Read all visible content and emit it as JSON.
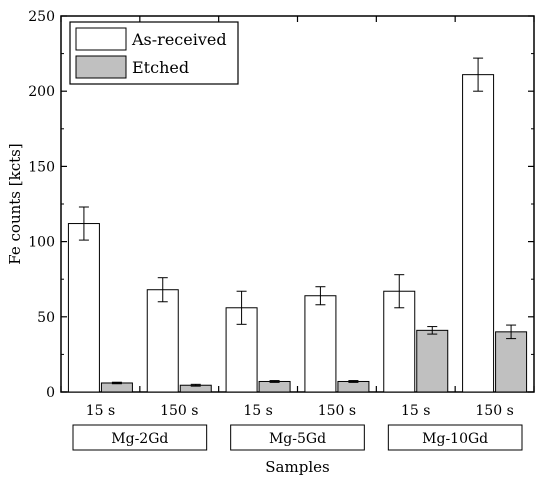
{
  "chart_data": {
    "type": "bar",
    "xlabel": "Samples",
    "ylabel": "Fe counts [kcts]",
    "ylim": [
      0,
      250
    ],
    "yticks": [
      0,
      50,
      100,
      150,
      200,
      250
    ],
    "categories": [
      "15 s",
      "150 s",
      "15 s",
      "150 s",
      "15 s",
      "150 s"
    ],
    "groups": [
      {
        "label": "Mg-2Gd",
        "categories": [
          0,
          1
        ]
      },
      {
        "label": "Mg-5Gd",
        "categories": [
          2,
          3
        ]
      },
      {
        "label": "Mg-10Gd",
        "categories": [
          4,
          5
        ]
      }
    ],
    "series": [
      {
        "name": "As-received",
        "color": "#ffffff",
        "values": [
          112,
          68,
          56,
          64,
          67,
          211
        ],
        "errors": [
          11,
          8,
          11,
          6,
          11,
          11
        ]
      },
      {
        "name": "Etched",
        "color": "#c0c0c0",
        "values": [
          6,
          4.5,
          7,
          7,
          41,
          40
        ],
        "errors": [
          0.5,
          0.6,
          0.6,
          0.6,
          2.5,
          4.5
        ]
      }
    ],
    "legend_position": "top-left",
    "grid": false
  }
}
